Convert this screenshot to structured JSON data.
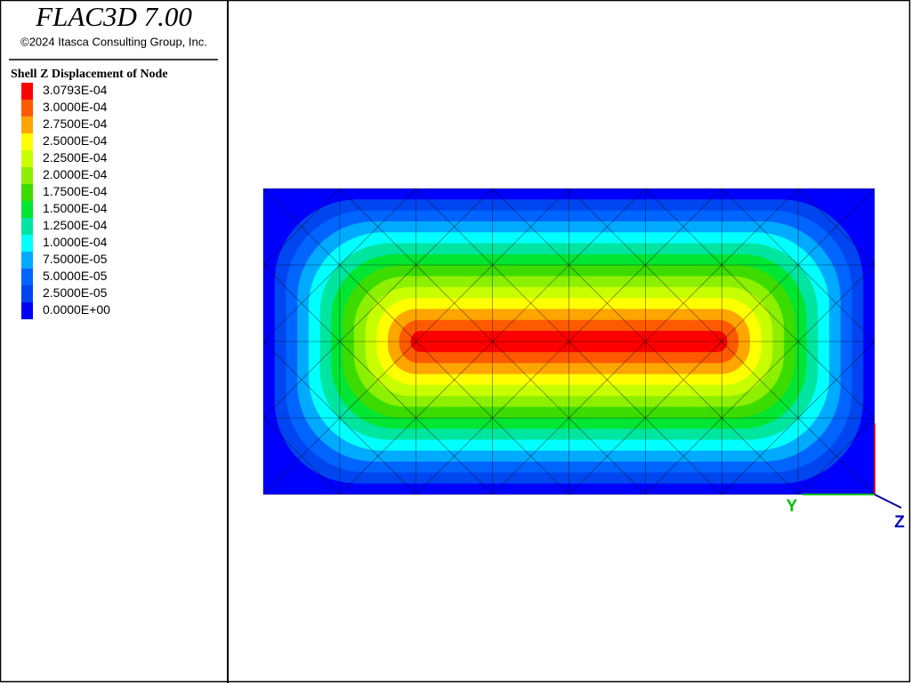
{
  "header": {
    "title": "FLAC3D 7.00",
    "copyright": "©2024 Itasca Consulting Group, Inc."
  },
  "legend": {
    "title": "Shell Z Displacement of Node",
    "entries": [
      {
        "label": "3.0793E-04",
        "color": "#ff0000"
      },
      {
        "label": "3.0000E-04",
        "color": "#ff5a00"
      },
      {
        "label": "2.7500E-04",
        "color": "#ffa500"
      },
      {
        "label": "2.5000E-04",
        "color": "#ffff00"
      },
      {
        "label": "2.2500E-04",
        "color": "#c8ff00"
      },
      {
        "label": "2.0000E-04",
        "color": "#8cf000"
      },
      {
        "label": "1.7500E-04",
        "color": "#3cdc00"
      },
      {
        "label": "1.5000E-04",
        "color": "#00e632"
      },
      {
        "label": "1.2500E-04",
        "color": "#00e6a0"
      },
      {
        "label": "1.0000E-04",
        "color": "#00ffff"
      },
      {
        "label": "7.5000E-05",
        "color": "#00aaff"
      },
      {
        "label": "5.0000E-05",
        "color": "#0064ff"
      },
      {
        "label": "2.5000E-05",
        "color": "#0046f0"
      },
      {
        "label": "0.0000E+00",
        "color": "#0000ff"
      }
    ]
  },
  "axes": {
    "y_label": "Y",
    "z_label": "Z"
  }
}
